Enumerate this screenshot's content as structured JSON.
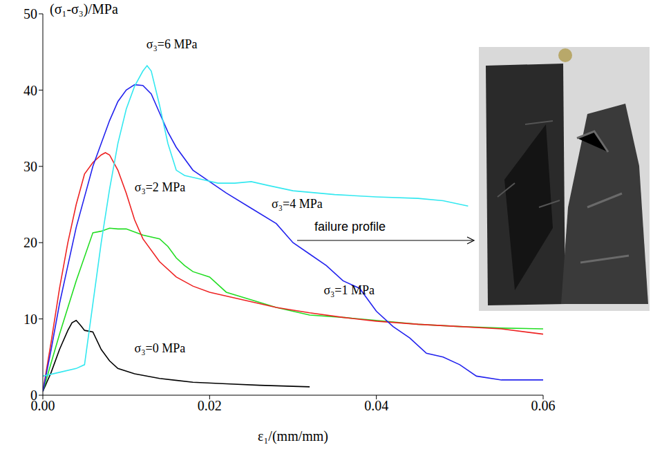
{
  "chart_data": {
    "type": "line",
    "x_label": "ε₁/(mm/mm)",
    "y_label": "(σ₁-σ₃)/MPa",
    "xlim": [
      0,
      0.06
    ],
    "xticks": [
      {
        "value": 0,
        "label": "0.00"
      },
      0.02,
      0.04,
      0.06
    ],
    "ylim": [
      0,
      50
    ],
    "yticks": [
      0,
      10,
      20,
      30,
      40,
      50
    ],
    "grid": false,
    "annotations": [
      "failure profile"
    ],
    "series": [
      {
        "name": "σ₃=0 MPa",
        "color": "#000000",
        "x": [
          0,
          0.001,
          0.002,
          0.003,
          0.0035,
          0.004,
          0.0045,
          0.005,
          0.006,
          0.007,
          0.008,
          0.009,
          0.011,
          0.014,
          0.018,
          0.022,
          0.026,
          0.032
        ],
        "values": [
          0.5,
          3,
          6,
          8.5,
          9.5,
          9.8,
          9.2,
          8.5,
          8.3,
          6,
          4.5,
          3.5,
          2.8,
          2.2,
          1.7,
          1.5,
          1.3,
          1.1
        ]
      },
      {
        "name": "σ₃=1 MPa",
        "color": "#22dd22",
        "x": [
          0,
          0.002,
          0.004,
          0.006,
          0.007,
          0.008,
          0.009,
          0.01,
          0.012,
          0.014,
          0.015,
          0.016,
          0.017,
          0.018,
          0.02,
          0.022,
          0.025,
          0.028,
          0.032,
          0.036,
          0.04,
          0.045,
          0.05,
          0.055,
          0.06
        ],
        "values": [
          0.5,
          8,
          15,
          21.3,
          21.5,
          21.9,
          21.8,
          21.8,
          21,
          20.5,
          19.5,
          18,
          17,
          16.2,
          15.5,
          13.5,
          12.5,
          11.5,
          10.5,
          10.2,
          9.8,
          9.3,
          9,
          8.8,
          8.7
        ]
      },
      {
        "name": "σ₃=2 MPa",
        "color": "#ee2222",
        "x": [
          0,
          0.001,
          0.002,
          0.003,
          0.004,
          0.005,
          0.006,
          0.007,
          0.0075,
          0.008,
          0.009,
          0.01,
          0.011,
          0.012,
          0.014,
          0.016,
          0.018,
          0.02,
          0.024,
          0.028,
          0.032,
          0.036,
          0.04,
          0.045,
          0.05,
          0.055,
          0.06
        ],
        "values": [
          0.5,
          7,
          14,
          20,
          25,
          29,
          30.5,
          31.5,
          31.8,
          31.5,
          29.5,
          26.5,
          23,
          20.5,
          17.5,
          15.5,
          14.3,
          13.5,
          12.5,
          11.5,
          10.8,
          10.2,
          9.7,
          9.3,
          9,
          8.7,
          8
        ]
      },
      {
        "name": "σ₃=4 MPa",
        "color": "#2222ee",
        "x": [
          0,
          0.001,
          0.002,
          0.004,
          0.006,
          0.008,
          0.009,
          0.01,
          0.011,
          0.012,
          0.013,
          0.014,
          0.015,
          0.016,
          0.018,
          0.02,
          0.022,
          0.025,
          0.028,
          0.03,
          0.032,
          0.034,
          0.036,
          0.038,
          0.04,
          0.042,
          0.044,
          0.046,
          0.048,
          0.05,
          0.052,
          0.055,
          0.06
        ],
        "values": [
          0.5,
          6,
          12,
          22,
          30,
          36,
          38.5,
          40,
          40.7,
          40.6,
          39.5,
          37,
          34.5,
          32.5,
          29.5,
          28,
          26.5,
          24.5,
          22.5,
          20,
          18.5,
          17,
          15,
          14,
          11,
          9,
          7.5,
          5.5,
          5,
          4,
          2.5,
          2,
          2
        ]
      },
      {
        "name": "σ₃=6 MPa",
        "color": "#33e8f0",
        "x": [
          0,
          0.002,
          0.004,
          0.005,
          0.006,
          0.007,
          0.008,
          0.009,
          0.01,
          0.011,
          0.012,
          0.0125,
          0.013,
          0.014,
          0.015,
          0.016,
          0.017,
          0.019,
          0.021,
          0.023,
          0.025,
          0.027,
          0.03,
          0.035,
          0.04,
          0.045,
          0.048,
          0.051
        ],
        "values": [
          2.5,
          3,
          3.5,
          4,
          12,
          20,
          27,
          33,
          37.5,
          40.5,
          42.5,
          43.2,
          42.5,
          38,
          33,
          29.5,
          28.8,
          28.3,
          27.8,
          27.8,
          28,
          27.5,
          26.8,
          26.3,
          26,
          25.8,
          25.5,
          24.8
        ]
      }
    ]
  }
}
